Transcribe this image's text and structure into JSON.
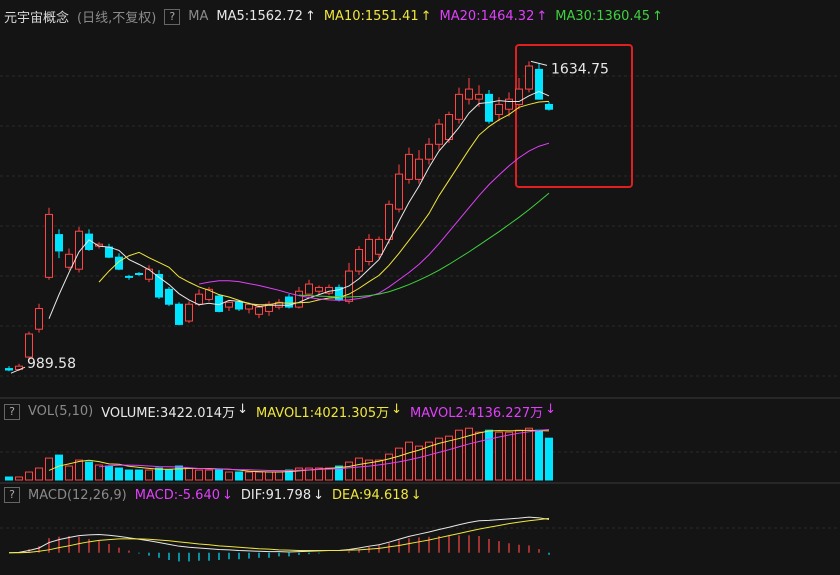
{
  "header": {
    "title": "元宇宙概念",
    "subtitle": "(日线,不复权)",
    "help": "?"
  },
  "chart_data": [
    {
      "type": "candlestick",
      "indicator": "MA",
      "up_color": "#ff4545",
      "down_color": "#00e4ff",
      "ylim": [
        940,
        1700
      ],
      "annotations": {
        "high": "1634.75",
        "low": "989.58"
      },
      "open": [
        995,
        993,
        1019,
        1077,
        1185,
        1274,
        1206,
        1202,
        1275,
        1250,
        1248,
        1227,
        1187,
        1193,
        1181,
        1191,
        1160,
        1129,
        1094,
        1129,
        1139,
        1146,
        1123,
        1133,
        1119,
        1108,
        1114,
        1123,
        1144,
        1123,
        1150,
        1156,
        1152,
        1164,
        1135,
        1198,
        1218,
        1233,
        1264,
        1327,
        1389,
        1389,
        1431,
        1462,
        1472,
        1514,
        1556,
        1556,
        1566,
        1524,
        1535,
        1545,
        1577,
        1618,
        1545
      ],
      "high": [
        1000,
        1005,
        1072,
        1130,
        1330,
        1285,
        1245,
        1290,
        1285,
        1258,
        1255,
        1235,
        1190,
        1196,
        1210,
        1200,
        1165,
        1133,
        1135,
        1160,
        1165,
        1150,
        1135,
        1138,
        1130,
        1128,
        1135,
        1140,
        1150,
        1165,
        1180,
        1168,
        1170,
        1170,
        1215,
        1250,
        1275,
        1270,
        1345,
        1420,
        1455,
        1450,
        1475,
        1515,
        1530,
        1580,
        1600,
        1585,
        1575,
        1560,
        1570,
        1600,
        1634.75,
        1630,
        1550
      ],
      "low": [
        989.58,
        990,
        1015,
        1070,
        1180,
        1225,
        1200,
        1195,
        1240,
        1245,
        1225,
        1200,
        1180,
        1188,
        1175,
        1140,
        1125,
        1085,
        1090,
        1125,
        1135,
        1112,
        1115,
        1115,
        1110,
        1100,
        1105,
        1118,
        1120,
        1120,
        1145,
        1150,
        1148,
        1135,
        1130,
        1190,
        1210,
        1225,
        1255,
        1320,
        1380,
        1380,
        1420,
        1450,
        1465,
        1505,
        1545,
        1540,
        1505,
        1510,
        1520,
        1535,
        1570,
        1555,
        1532
      ],
      "close": [
        992,
        1000,
        1067,
        1120,
        1316,
        1240,
        1233,
        1281,
        1243,
        1254,
        1227,
        1202,
        1185,
        1191,
        1202,
        1144,
        1129,
        1087,
        1129,
        1150,
        1160,
        1114,
        1133,
        1119,
        1129,
        1123,
        1129,
        1133,
        1123,
        1156,
        1171,
        1164,
        1164,
        1139,
        1198,
        1243,
        1264,
        1264,
        1337,
        1400,
        1441,
        1431,
        1462,
        1504,
        1524,
        1566,
        1577,
        1566,
        1510,
        1545,
        1556,
        1577,
        1625,
        1556,
        1535
      ],
      "series": [
        {
          "name": "MA5:1562.72",
          "arrow": "↑",
          "color": "#e8e8e8",
          "values": [
            null,
            null,
            null,
            null,
            1099,
            1149,
            1195,
            1238,
            1263,
            1250,
            1248,
            1241,
            1222,
            1212,
            1201,
            1185,
            1170,
            1151,
            1138,
            1128,
            1131,
            1128,
            1137,
            1135,
            1131,
            1124,
            1127,
            1127,
            1127,
            1133,
            1142,
            1149,
            1156,
            1159,
            1167,
            1182,
            1202,
            1222,
            1261,
            1302,
            1341,
            1375,
            1414,
            1448,
            1472,
            1497,
            1527,
            1547,
            1549,
            1553,
            1551,
            1551,
            1563,
            1572,
            1562.72
          ]
        },
        {
          "name": "MA10:1551.41",
          "arrow": "↑",
          "color": "#f0e63c",
          "values": [
            null,
            null,
            null,
            null,
            null,
            null,
            null,
            null,
            null,
            1175,
            1198,
            1218,
            1230,
            1237,
            1226,
            1216,
            1206,
            1186,
            1175,
            1165,
            1158,
            1149,
            1144,
            1137,
            1130,
            1128,
            1128,
            1132,
            1131,
            1132,
            1133,
            1138,
            1142,
            1143,
            1150,
            1162,
            1176,
            1189,
            1210,
            1235,
            1262,
            1289,
            1318,
            1355,
            1387,
            1419,
            1451,
            1481,
            1499,
            1513,
            1524,
            1539,
            1545,
            1550,
            1551.41
          ]
        },
        {
          "name": "MA20:1464.32",
          "arrow": "↑",
          "color": "#e040fb",
          "values": [
            null,
            null,
            null,
            null,
            null,
            null,
            null,
            null,
            null,
            null,
            null,
            null,
            null,
            null,
            null,
            null,
            null,
            null,
            null,
            1171,
            1175,
            1178,
            1178,
            1176,
            1172,
            1168,
            1163,
            1158,
            1152,
            1147,
            1143,
            1140,
            1138,
            1137,
            1138,
            1141,
            1145,
            1152,
            1165,
            1180,
            1195,
            1212,
            1232,
            1255,
            1280,
            1305,
            1330,
            1355,
            1378,
            1398,
            1417,
            1434,
            1448,
            1458,
            1464.32
          ]
        },
        {
          "name": "MA30:1360.45",
          "arrow": "↑",
          "color": "#40d040",
          "values": [
            null,
            null,
            null,
            null,
            null,
            null,
            null,
            null,
            null,
            null,
            null,
            null,
            null,
            null,
            null,
            null,
            null,
            null,
            null,
            null,
            null,
            null,
            null,
            null,
            null,
            null,
            null,
            null,
            null,
            1148,
            1147,
            1146,
            1145,
            1144,
            1144,
            1145,
            1147,
            1150,
            1155,
            1162,
            1170,
            1179,
            1189,
            1200,
            1212,
            1225,
            1238,
            1252,
            1266,
            1280,
            1295,
            1310,
            1326,
            1343,
            1360.45
          ]
        }
      ]
    },
    {
      "type": "bar",
      "indicator": "VOL(5,10)",
      "ylim": [
        0,
        4500
      ],
      "value_legend": {
        "name": "VOLUME:3422.014万",
        "arrow": "↓",
        "color": "#e8e8e8"
      },
      "values": [
        245,
        245,
        652,
        978,
        1793,
        2038,
        1141,
        1630,
        1467,
        1223,
        1141,
        978,
        815,
        815,
        815,
        978,
        815,
        1141,
        978,
        815,
        815,
        815,
        652,
        652,
        652,
        652,
        652,
        652,
        815,
        978,
        978,
        978,
        978,
        1141,
        1467,
        1793,
        1630,
        1630,
        2119,
        2608,
        3097,
        2771,
        3097,
        3423,
        3586,
        4075,
        4238,
        3912,
        4075,
        3912,
        3912,
        4075,
        4238,
        4075,
        3422.014
      ],
      "series": [
        {
          "name": "MAVOL1:4021.305万",
          "arrow": "↓",
          "color": "#f0e63c",
          "values": [
            null,
            null,
            null,
            null,
            780,
            1141,
            1320,
            1516,
            1614,
            1500,
            1322,
            1284,
            1124,
            1035,
            953,
            880,
            880,
            913,
            945,
            945,
            945,
            913,
            880,
            815,
            717,
            685,
            652,
            652,
            685,
            750,
            815,
            880,
            945,
            1010,
            1108,
            1271,
            1402,
            1532,
            1728,
            1956,
            2217,
            2445,
            2738,
            2999,
            3195,
            3390,
            3619,
            3847,
            4010,
            4042,
            4023,
            4042,
            4075,
            4042,
            4021.305
          ]
        },
        {
          "name": "MAVOL2:4136.227万",
          "arrow": "↓",
          "color": "#e040fb",
          "values": [
            null,
            null,
            null,
            null,
            null,
            null,
            null,
            null,
            null,
            1079,
            1169,
            1202,
            1218,
            1200,
            1142,
            1095,
            1085,
            1060,
            1000,
            944,
            915,
            895,
            870,
            850,
            835,
            810,
            780,
            765,
            780,
            800,
            830,
            860,
            890,
            930,
            990,
            1060,
            1140,
            1240,
            1350,
            1480,
            1650,
            1830,
            2040,
            2260,
            2480,
            2720,
            2950,
            3150,
            3340,
            3520,
            3680,
            3830,
            3950,
            4060,
            4136.227
          ]
        }
      ]
    },
    {
      "type": "macd",
      "indicator": "MACD(12,26,9)",
      "ylim": [
        -20,
        145
      ],
      "value_legend": {
        "name": "MACD:-5.640",
        "arrow": "↓",
        "color": "#e040fb"
      },
      "values": [
        0,
        2,
        10,
        18,
        40,
        44,
        46,
        44,
        38,
        32,
        24,
        14,
        6,
        -2,
        -8,
        -14,
        -20,
        -24,
        -24,
        -22,
        -22,
        -20,
        -18,
        -18,
        -16,
        -14,
        -14,
        -10,
        -10,
        -6,
        -4,
        -2,
        0,
        0,
        4,
        10,
        16,
        20,
        26,
        34,
        40,
        42,
        44,
        46,
        46,
        48,
        48,
        46,
        38,
        32,
        26,
        22,
        20,
        10,
        -5.64
      ],
      "series": [
        {
          "name": "DIF:91.798",
          "arrow": "↓",
          "color": "#e8e8e8",
          "values": [
            0,
            1,
            6,
            13,
            28,
            36,
            42,
            47,
            49,
            50,
            48,
            45,
            41,
            37,
            33,
            28,
            23,
            18,
            15,
            13,
            11,
            9,
            8,
            6,
            5,
            4,
            3,
            3,
            2,
            3,
            4,
            5,
            6,
            6,
            9,
            13,
            18,
            22,
            29,
            37,
            45,
            51,
            57,
            64,
            70,
            77,
            83,
            88,
            89,
            91,
            93,
            95,
            98,
            96,
            91.798
          ]
        },
        {
          "name": "DEA:94.618",
          "arrow": "↓",
          "color": "#f0e63c",
          "values": [
            0,
            0,
            1,
            4,
            8,
            14,
            19,
            25,
            30,
            34,
            36,
            38,
            38,
            38,
            37,
            35,
            33,
            30,
            27,
            24,
            22,
            19,
            17,
            15,
            13,
            11,
            10,
            8,
            7,
            6,
            6,
            6,
            6,
            6,
            7,
            8,
            10,
            12,
            16,
            20,
            25,
            30,
            35,
            41,
            47,
            53,
            59,
            65,
            70,
            75,
            80,
            84,
            88,
            91,
            94.618
          ]
        }
      ]
    }
  ]
}
